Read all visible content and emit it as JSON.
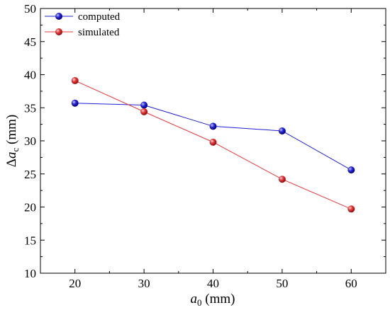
{
  "chart_data": {
    "type": "line",
    "title": "",
    "xlabel": {
      "main": "a",
      "sub": "0",
      "unit": " (mm)"
    },
    "ylabel": {
      "prefix": "Δ",
      "main": "a",
      "sub": "c",
      "unit": " (mm)"
    },
    "xlim": [
      15,
      65
    ],
    "ylim": [
      10,
      50
    ],
    "xticks": [
      20,
      30,
      40,
      50,
      60
    ],
    "yticks": [
      10,
      15,
      20,
      25,
      30,
      35,
      40,
      45,
      50
    ],
    "x": [
      20,
      30,
      40,
      50,
      60
    ],
    "series": [
      {
        "name": "computed",
        "color": "#1f1fd6",
        "values": [
          35.7,
          35.4,
          32.2,
          31.5,
          25.6
        ]
      },
      {
        "name": "simulated",
        "color": "#e8383b",
        "values": [
          39.1,
          34.4,
          29.8,
          24.2,
          19.7
        ]
      }
    ],
    "grid": false,
    "legend": "top-left"
  }
}
